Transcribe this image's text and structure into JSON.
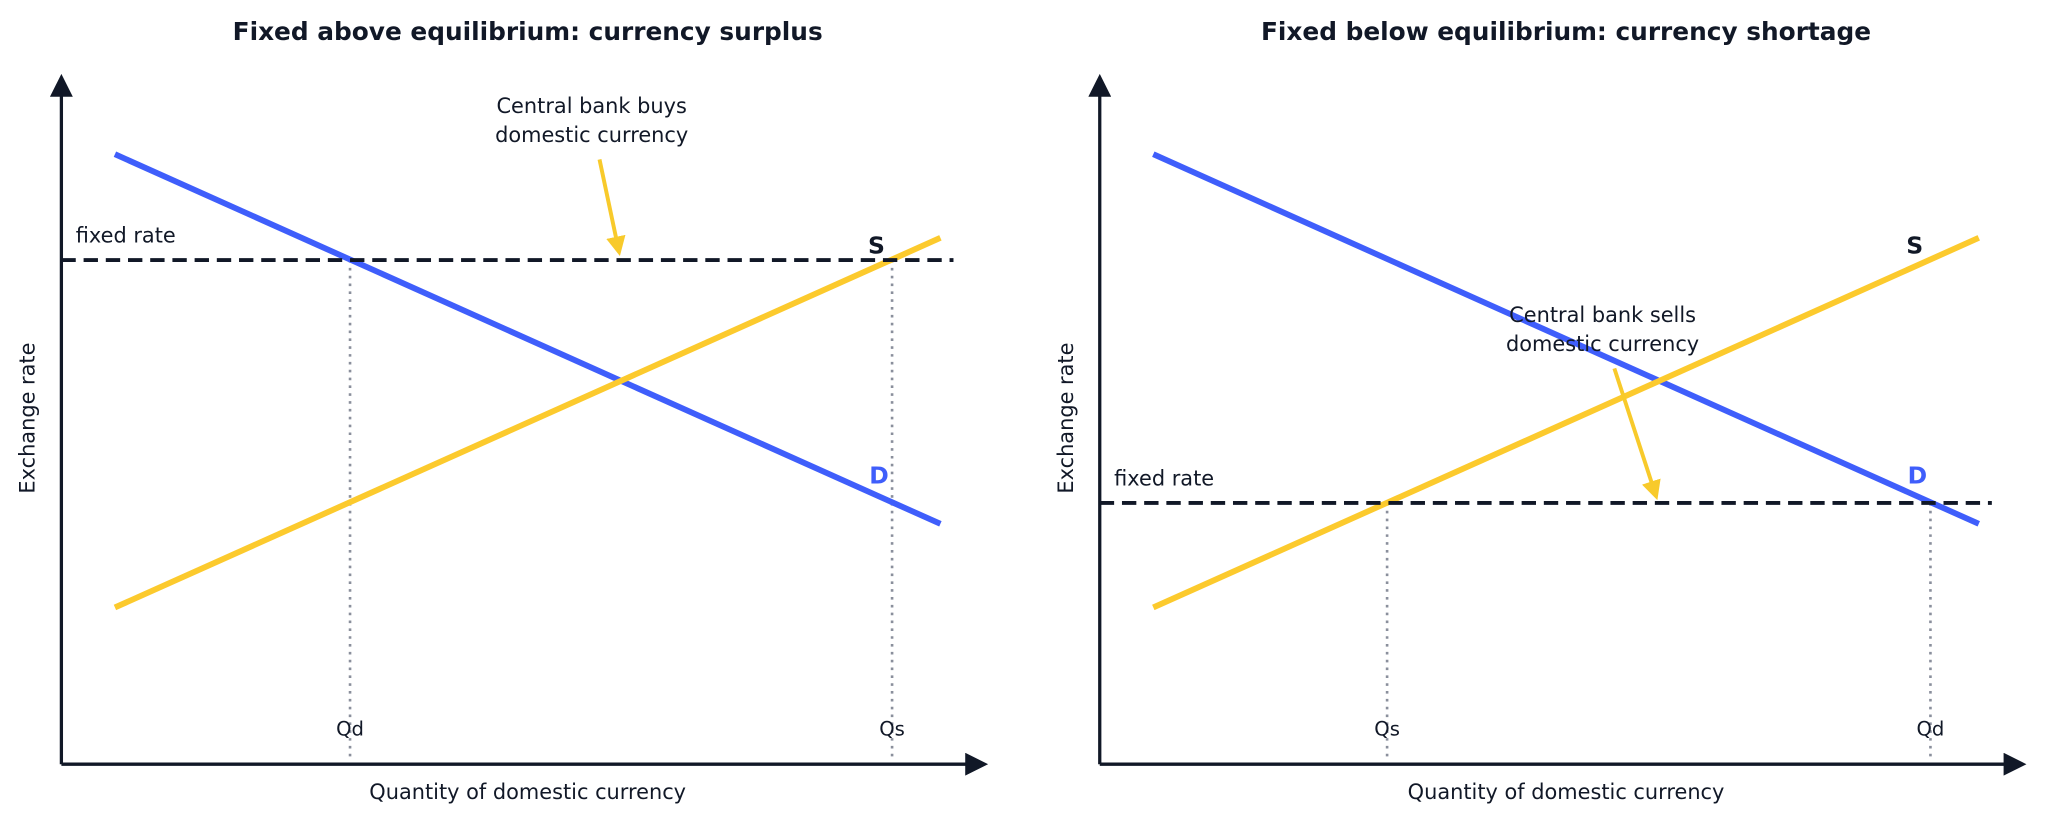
{
  "panels": [
    {
      "title": "Fixed above equilibrium: currency surplus",
      "y_label": "Exchange rate",
      "x_label": "Quantity of domestic currency",
      "fixed_rate_label": "fixed rate",
      "supply_label": "S",
      "demand_label": "D",
      "annotation": [
        "Central bank buys",
        "domestic currency"
      ],
      "quantity_labels": [
        "Qd",
        "Qs"
      ]
    },
    {
      "title": "Fixed below equilibrium: currency shortage",
      "y_label": "Exchange rate",
      "x_label": "Quantity of domestic currency",
      "fixed_rate_label": "fixed rate",
      "supply_label": "S",
      "demand_label": "D",
      "annotation": [
        "Central bank sells",
        "domestic currency"
      ],
      "quantity_labels": [
        "Qs",
        "Qd"
      ]
    }
  ]
}
